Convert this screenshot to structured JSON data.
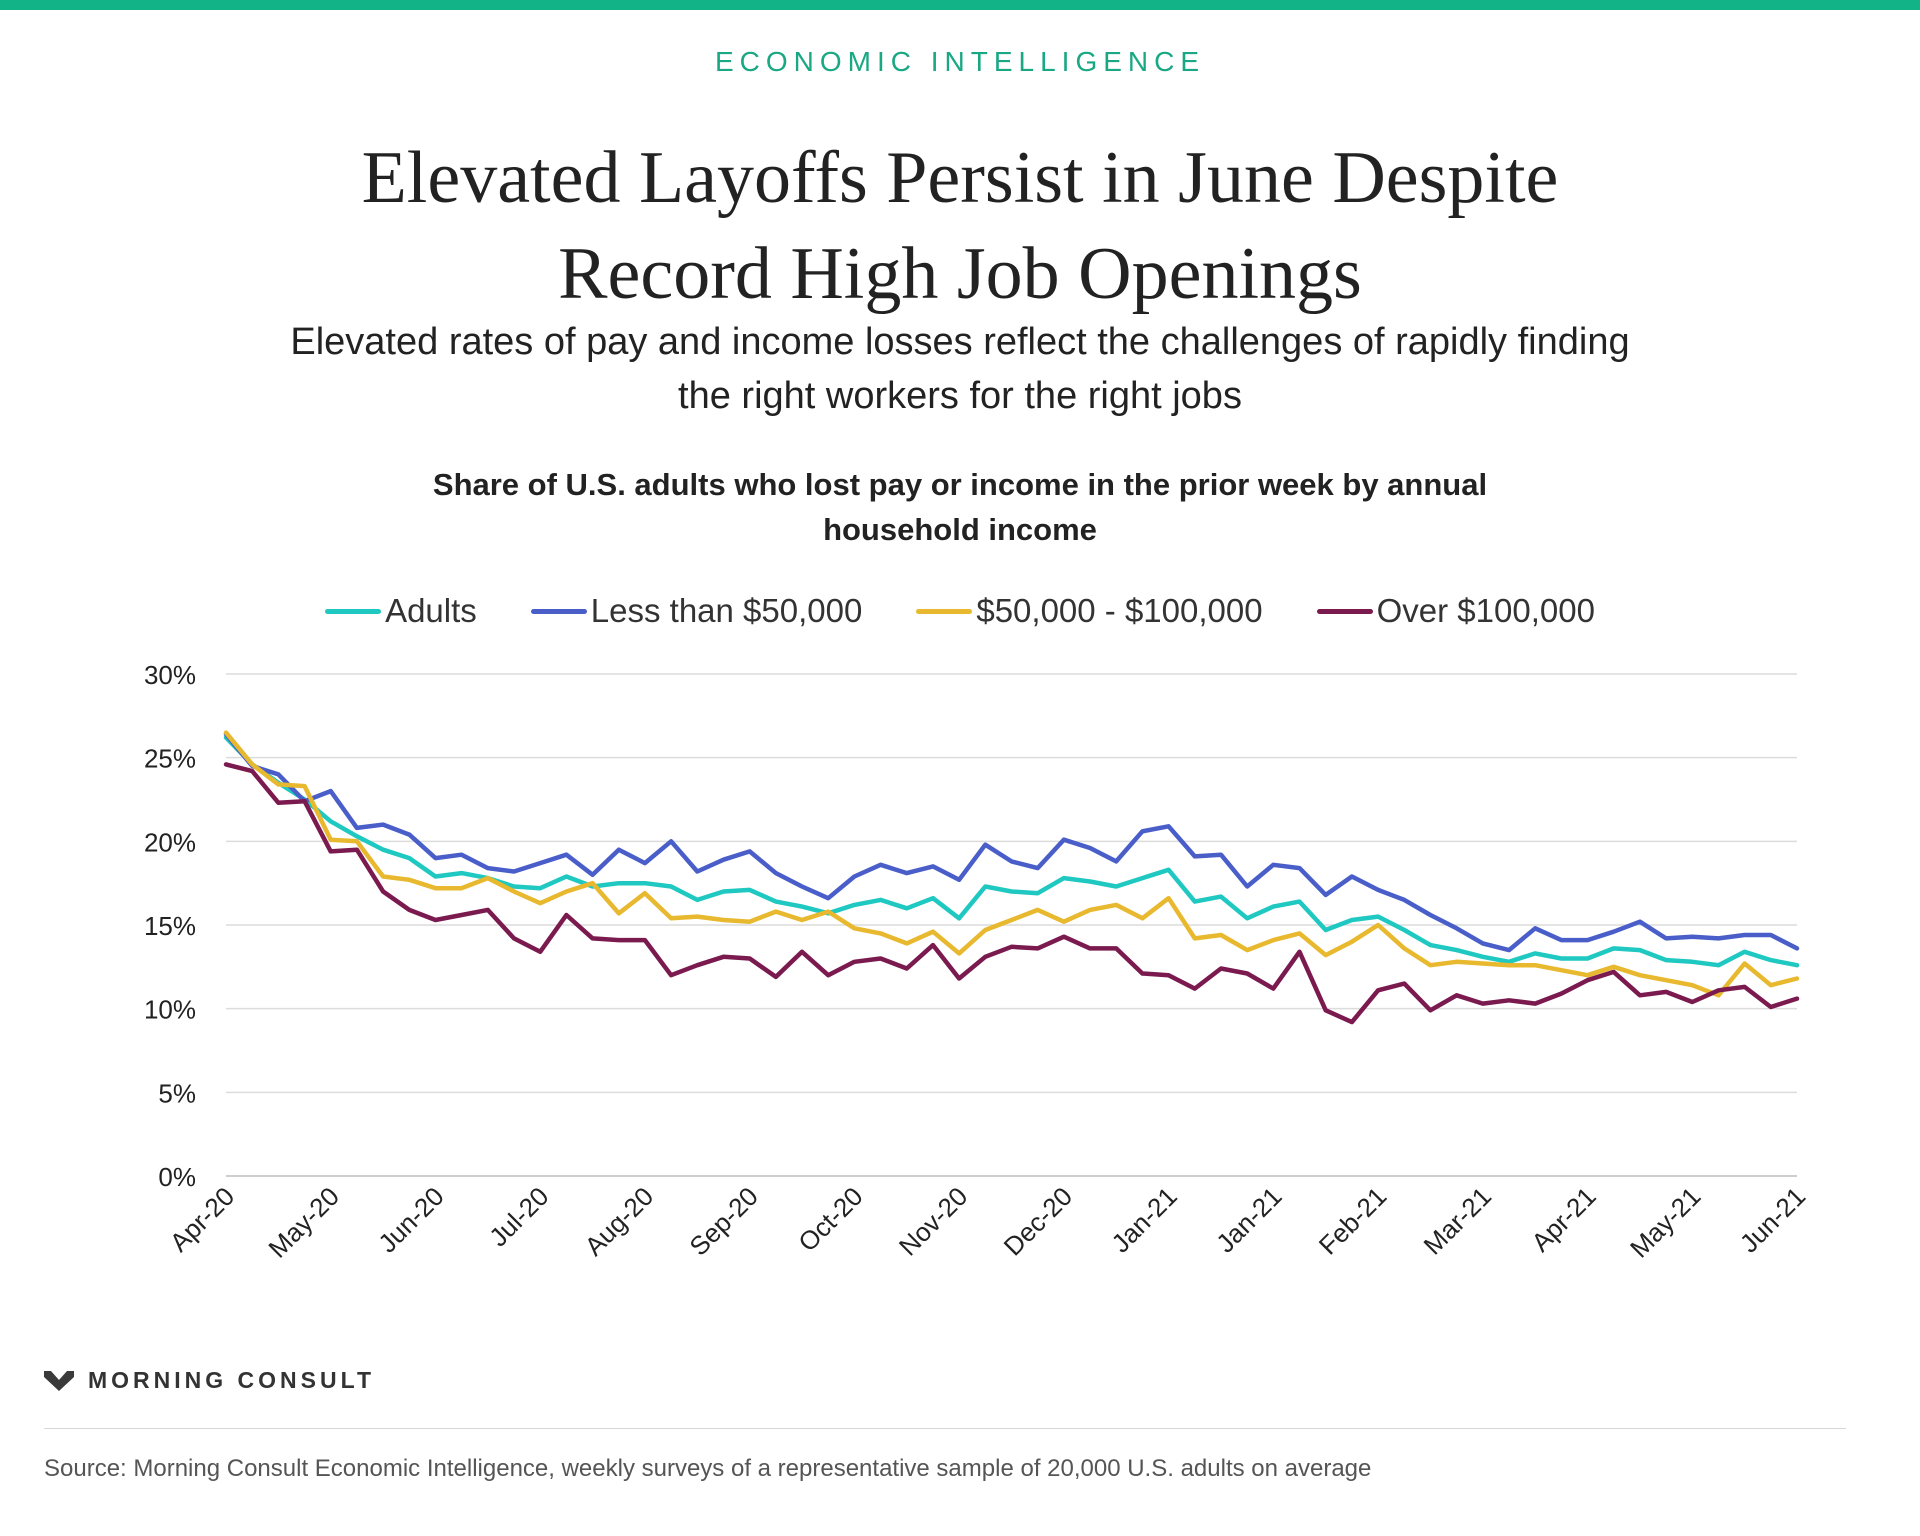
{
  "header": {
    "kicker": "ECONOMIC INTELLIGENCE",
    "title": "Elevated Layoffs Persist in June Despite Record High Job Openings",
    "subtitle": "Elevated rates of pay and income losses reflect the challenges of rapidly finding the right workers for the right jobs",
    "accent_color": "#12b487"
  },
  "footer": {
    "brand": "MORNING CONSULT",
    "source": "Source: Morning Consult Economic Intelligence, weekly surveys of a representative sample of 20,000 U.S. adults on average"
  },
  "chart_data": {
    "type": "line",
    "title": "Share of U.S. adults who lost pay or income in the prior week by annual household income",
    "xlabel": "",
    "ylabel": "",
    "ylim": [
      0,
      30
    ],
    "yticks": [
      "0%",
      "5%",
      "10%",
      "15%",
      "20%",
      "25%",
      "30%"
    ],
    "x_tick_labels": [
      "Apr-20",
      "May-20",
      "Jun-20",
      "Jul-20",
      "Aug-20",
      "Sep-20",
      "Oct-20",
      "Nov-20",
      "Dec-20",
      "Jan-21",
      "Jan-21",
      "Feb-21",
      "Mar-21",
      "Apr-21",
      "May-21",
      "Jun-21"
    ],
    "grid": true,
    "legend_position": "top",
    "series": [
      {
        "name": "Adults",
        "color": "#1fc8c0",
        "values": [
          26.2,
          24.6,
          23.5,
          22.5,
          21.2,
          20.3,
          19.5,
          19.0,
          17.9,
          18.1,
          17.8,
          17.3,
          17.2,
          17.9,
          17.3,
          17.5,
          17.5,
          17.3,
          16.5,
          17.0,
          17.1,
          16.4,
          16.1,
          15.7,
          16.2,
          16.5,
          16.0,
          16.6,
          15.4,
          17.3,
          17.0,
          16.9,
          17.8,
          17.6,
          17.3,
          17.8,
          18.3,
          16.4,
          16.7,
          15.4,
          16.1,
          16.4,
          14.7,
          15.3,
          15.5,
          14.7,
          13.8,
          13.5,
          13.1,
          12.8,
          13.3,
          13.0,
          13.0,
          13.6,
          13.5,
          12.9,
          12.8,
          12.6,
          13.4,
          12.9,
          12.6
        ]
      },
      {
        "name": "Less than $50,000",
        "color": "#4a5ec9",
        "values": [
          26.4,
          24.5,
          24.0,
          22.4,
          23.0,
          20.8,
          21.0,
          20.4,
          19.0,
          19.2,
          18.4,
          18.2,
          18.7,
          19.2,
          18.0,
          19.5,
          18.7,
          20.0,
          18.2,
          18.9,
          19.4,
          18.1,
          17.3,
          16.6,
          17.9,
          18.6,
          18.1,
          18.5,
          17.7,
          19.8,
          18.8,
          18.4,
          20.1,
          19.6,
          18.8,
          20.6,
          20.9,
          19.1,
          19.2,
          17.3,
          18.6,
          18.4,
          16.8,
          17.9,
          17.1,
          16.5,
          15.6,
          14.8,
          13.9,
          13.5,
          14.8,
          14.1,
          14.1,
          14.6,
          15.2,
          14.2,
          14.3,
          14.2,
          14.4,
          14.4,
          13.6
        ]
      },
      {
        "name": "$50,000 - $100,000",
        "color": "#e8b82e",
        "values": [
          26.5,
          24.6,
          23.4,
          23.3,
          20.1,
          20.0,
          17.9,
          17.7,
          17.2,
          17.2,
          17.8,
          17.0,
          16.3,
          17.0,
          17.5,
          15.7,
          16.9,
          15.4,
          15.5,
          15.3,
          15.2,
          15.8,
          15.3,
          15.8,
          14.8,
          14.5,
          13.9,
          14.6,
          13.3,
          14.7,
          15.3,
          15.9,
          15.2,
          15.9,
          16.2,
          15.4,
          16.6,
          14.2,
          14.4,
          13.5,
          14.1,
          14.5,
          13.2,
          14.0,
          15.0,
          13.6,
          12.6,
          12.8,
          12.7,
          12.6,
          12.6,
          12.3,
          12.0,
          12.5,
          12.0,
          11.7,
          11.4,
          10.8,
          12.7,
          11.4,
          11.8
        ]
      },
      {
        "name": "Over $100,000",
        "color": "#7a1a4f",
        "values": [
          24.6,
          24.2,
          22.3,
          22.4,
          19.4,
          19.5,
          17.0,
          15.9,
          15.3,
          15.6,
          15.9,
          14.2,
          13.4,
          15.6,
          14.2,
          14.1,
          14.1,
          12.0,
          12.6,
          13.1,
          13.0,
          11.9,
          13.4,
          12.0,
          12.8,
          13.0,
          12.4,
          13.8,
          11.8,
          13.1,
          13.7,
          13.6,
          14.3,
          13.6,
          13.6,
          12.1,
          12.0,
          11.2,
          12.4,
          12.1,
          11.2,
          13.4,
          9.9,
          9.2,
          11.1,
          11.5,
          9.9,
          10.8,
          10.3,
          10.5,
          10.3,
          10.9,
          11.7,
          12.2,
          10.8,
          11.0,
          10.4,
          11.1,
          11.3,
          10.1,
          10.6
        ]
      }
    ]
  }
}
